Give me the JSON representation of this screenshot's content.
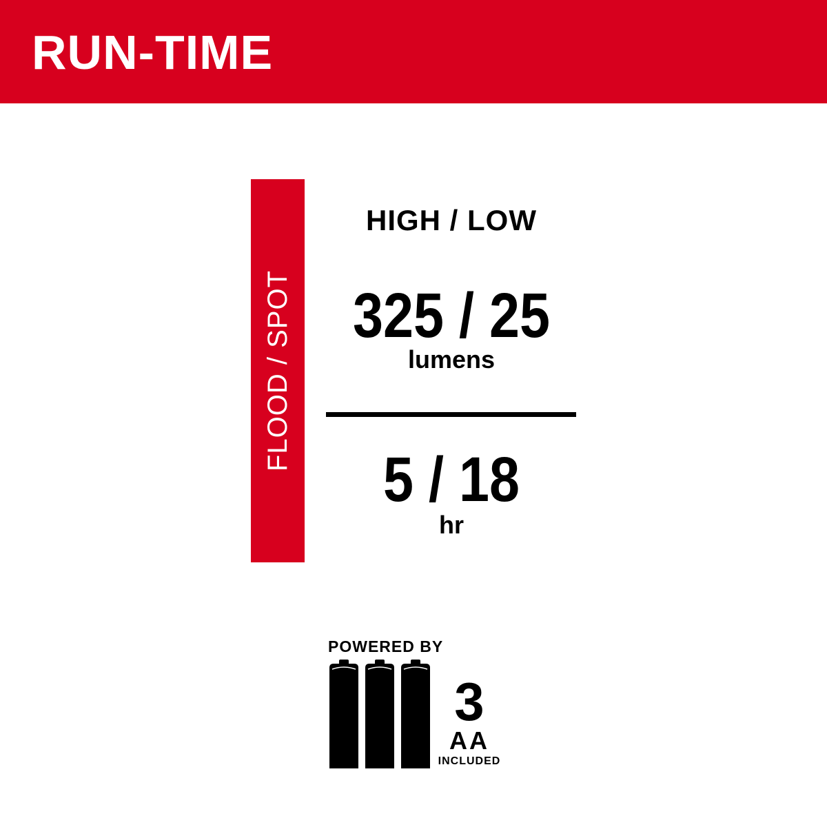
{
  "header": {
    "title": "RUN-TIME"
  },
  "side_label": "FLOOD / SPOT",
  "spec": {
    "mode_label": "HIGH / LOW",
    "lumens_value": "325 / 25",
    "lumens_unit": "lumens",
    "runtime_value": "5 / 18",
    "runtime_unit": "hr"
  },
  "power": {
    "label": "POWERED BY",
    "battery_count": "3",
    "battery_type": "AA",
    "note": "INCLUDED",
    "icon": "three-aa-batteries-icon"
  },
  "colors": {
    "brand_red": "#d7001e",
    "text": "#000000",
    "background": "#ffffff"
  }
}
